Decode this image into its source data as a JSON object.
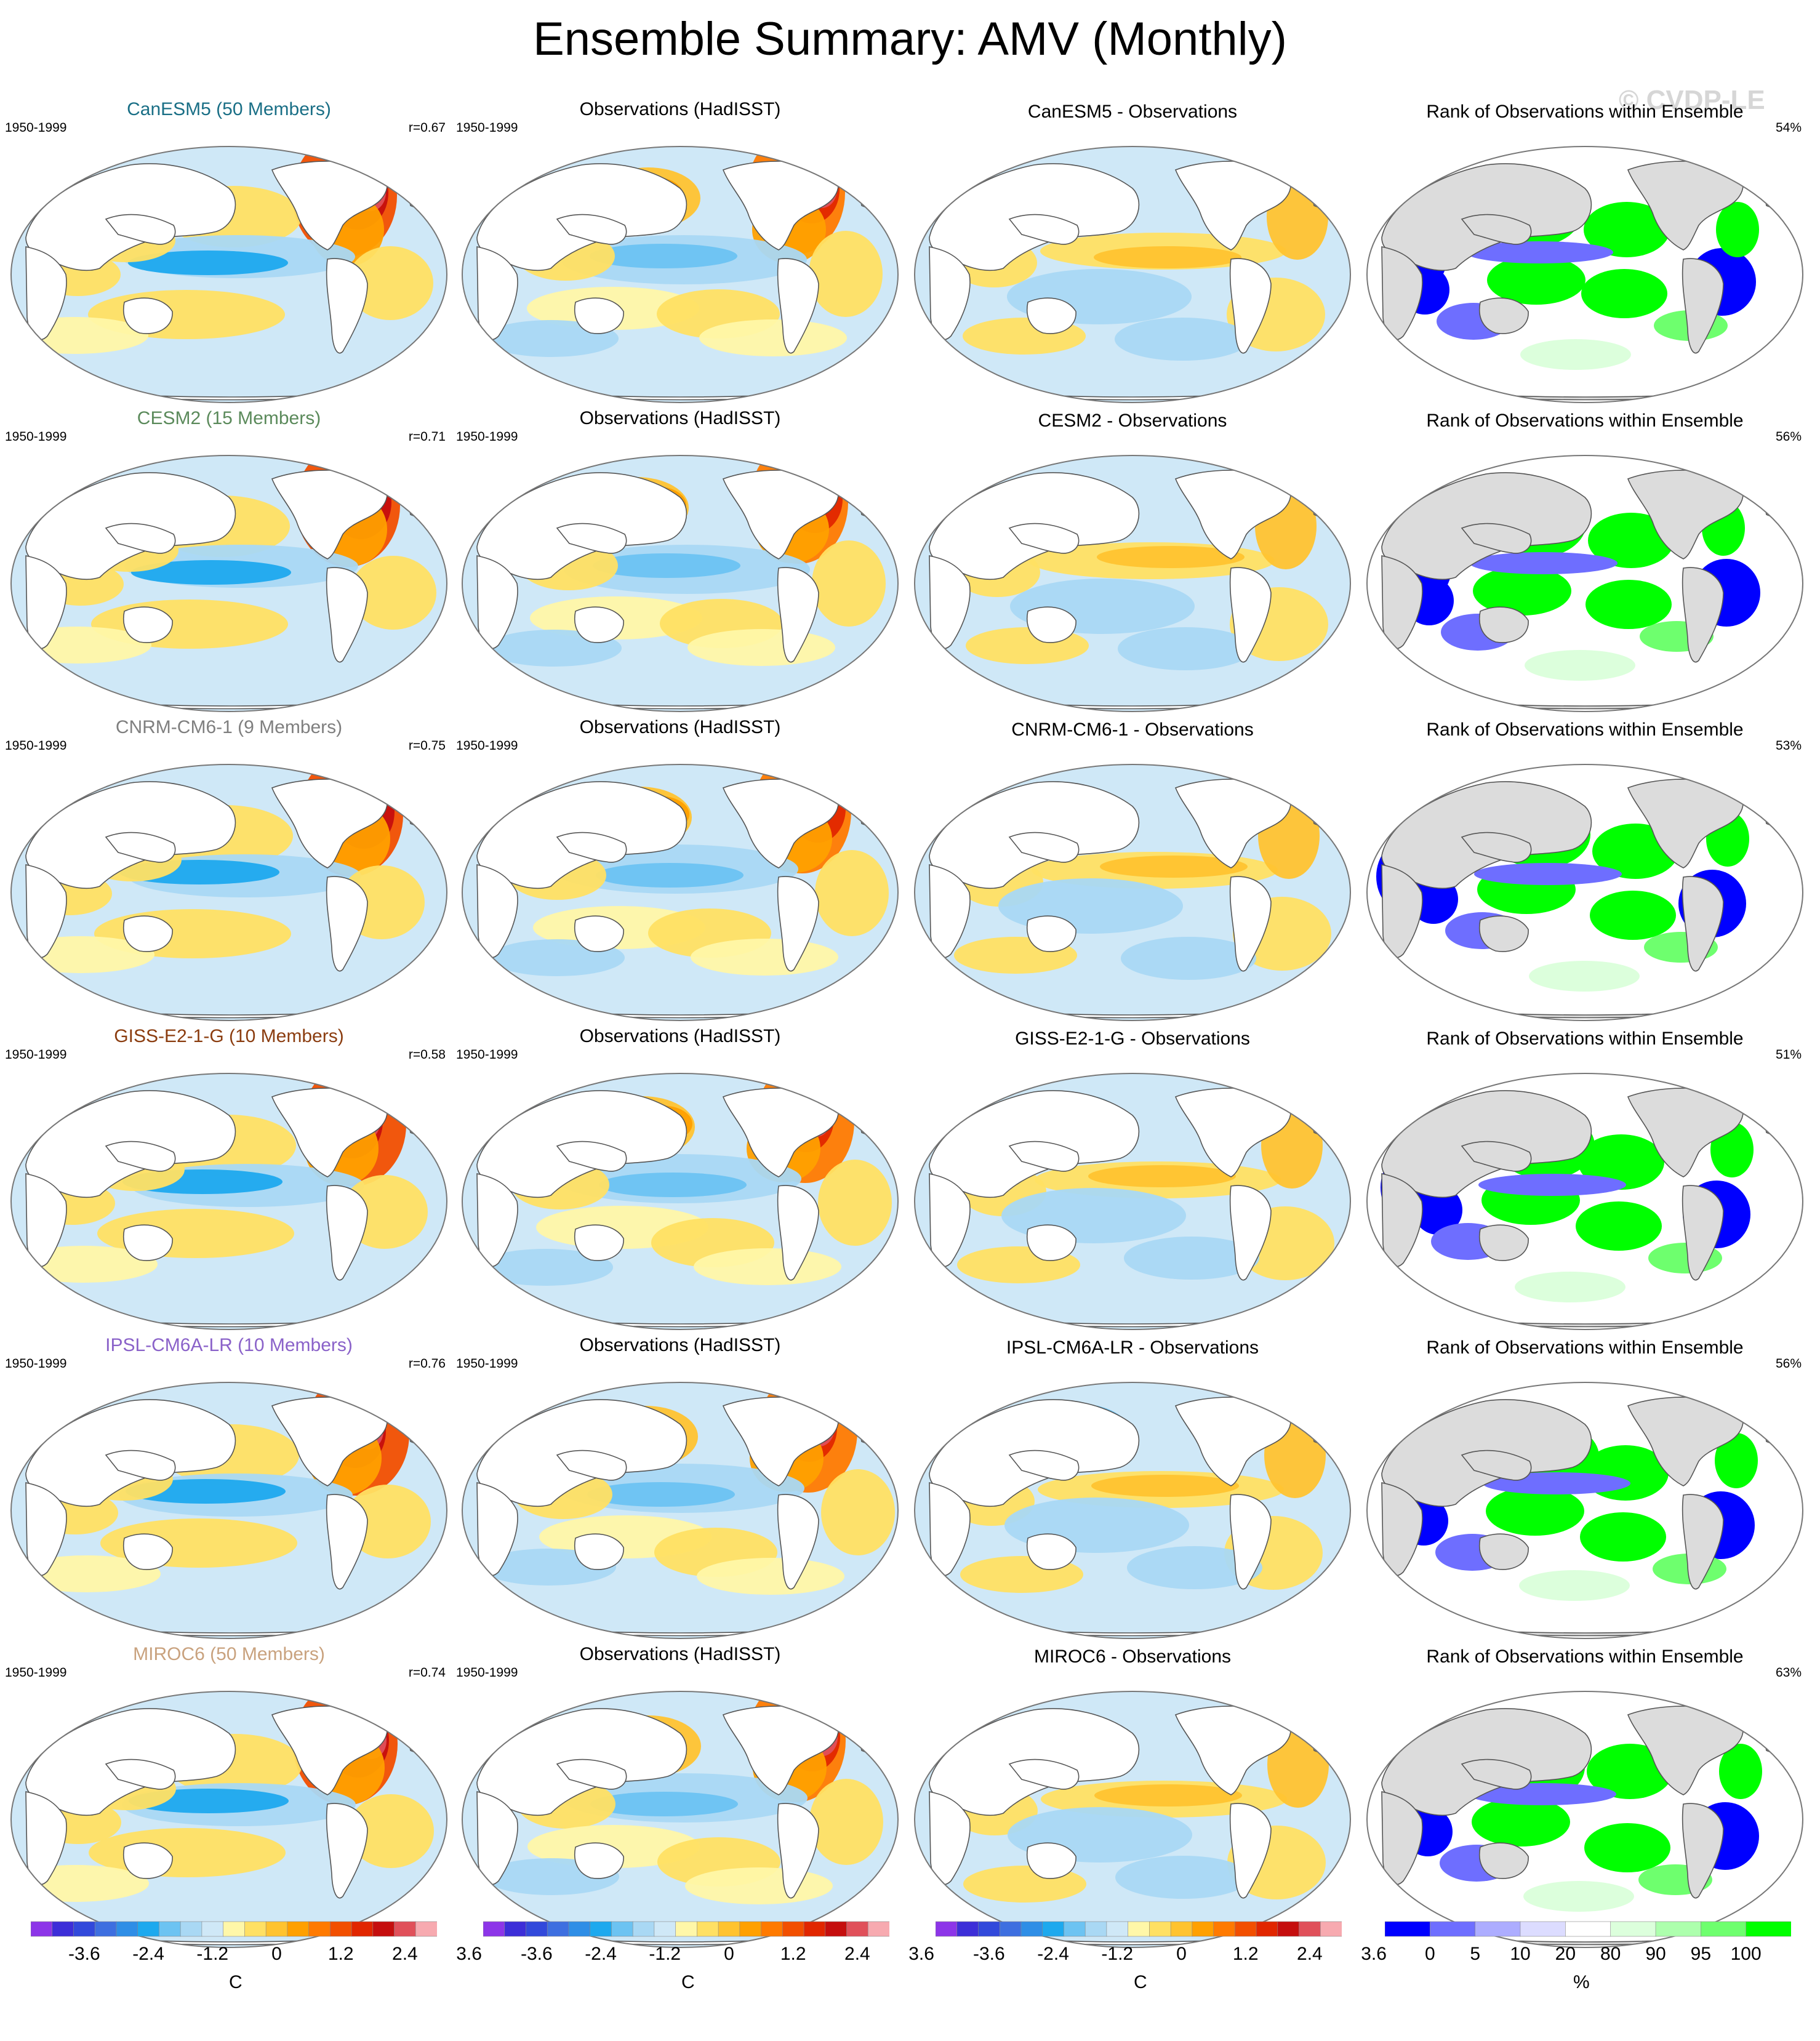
{
  "title": "Ensemble Summary: AMV (Monthly)",
  "watermark": "© CVDP-LE",
  "rows": [
    {
      "model_title": "CanESM5 (50 Members)",
      "model_color": "#1a6f86",
      "years": "1950-1999",
      "r": "r=0.67",
      "obs_title": "Observations (HadISST)",
      "diff_title": "CanESM5 - Observations",
      "rank_title": "Rank of Observations within Ensemble",
      "rank_pct": "54%"
    },
    {
      "model_title": "CESM2 (15 Members)",
      "model_color": "#5b8a5b",
      "years": "1950-1999",
      "r": "r=0.71",
      "obs_title": "Observations (HadISST)",
      "diff_title": "CESM2 - Observations",
      "rank_title": "Rank of Observations within Ensemble",
      "rank_pct": "56%"
    },
    {
      "model_title": "CNRM-CM6-1 (9 Members)",
      "model_color": "#7f7f7f",
      "years": "1950-1999",
      "r": "r=0.75",
      "obs_title": "Observations (HadISST)",
      "diff_title": "CNRM-CM6-1 - Observations",
      "rank_title": "Rank of Observations within Ensemble",
      "rank_pct": "53%"
    },
    {
      "model_title": "GISS-E2-1-G (10 Members)",
      "model_color": "#8b3d10",
      "years": "1950-1999",
      "r": "r=0.58",
      "obs_title": "Observations (HadISST)",
      "diff_title": "GISS-E2-1-G - Observations",
      "rank_title": "Rank of Observations within Ensemble",
      "rank_pct": "51%"
    },
    {
      "model_title": "IPSL-CM6A-LR (10 Members)",
      "model_color": "#8a62c9",
      "years": "1950-1999",
      "r": "r=0.76",
      "obs_title": "Observations (HadISST)",
      "diff_title": "IPSL-CM6A-LR - Observations",
      "rank_title": "Rank of Observations within Ensemble",
      "rank_pct": "56%"
    },
    {
      "model_title": "MIROC6 (50 Members)",
      "model_color": "#c9a27e",
      "years": "1950-1999",
      "r": "r=0.74",
      "obs_title": "Observations (HadISST)",
      "diff_title": "MIROC6 - Observations",
      "rank_title": "Rank of Observations within Ensemble",
      "rank_pct": "63%"
    }
  ],
  "colorbar_sst": {
    "tick_labels": [
      "-3.6",
      "-2.4",
      "-1.2",
      "0",
      "1.2",
      "2.4",
      "3.6"
    ],
    "unit": "C",
    "colors": [
      "#8d35e8",
      "#3d2ed8",
      "#3249db",
      "#3e6fe0",
      "#2f8ee6",
      "#1da9ee",
      "#6cc3f2",
      "#a9d8f4",
      "#cfe8f7",
      "#fff7a8",
      "#ffe063",
      "#ffc330",
      "#ffa000",
      "#ff7a00",
      "#f24f00",
      "#e12600",
      "#c50e0e",
      "#e0505a",
      "#f7aab0"
    ]
  },
  "colorbar_rank": {
    "tick_labels": [
      "0",
      "5",
      "10",
      "20",
      "80",
      "90",
      "95",
      "100"
    ],
    "unit": "%",
    "colors": [
      "#0000ff",
      "#6e6eff",
      "#adadff",
      "#dcdcff",
      "#ffffff",
      "#dcffdc",
      "#adffad",
      "#6eff6e",
      "#00ff00"
    ]
  },
  "map_palette": {
    "ocean_neutral": "#cfe8f7",
    "land": "#ffffff",
    "rank_land": "#dcdcdc",
    "coast": "#555555"
  }
}
